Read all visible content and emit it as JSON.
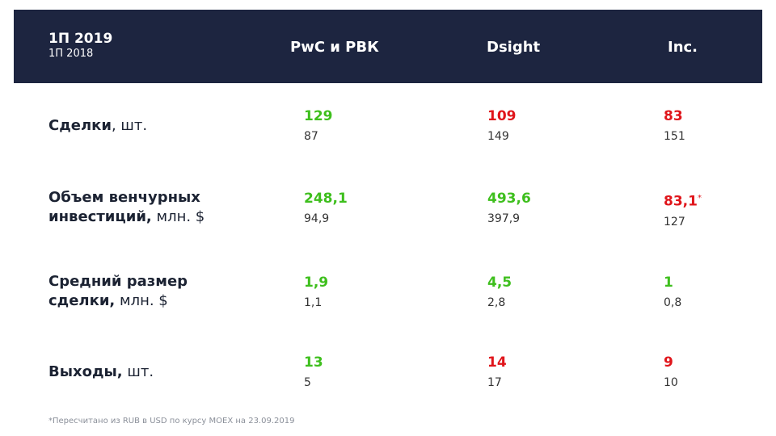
{
  "header": {
    "period_current": "1П 2019",
    "period_previous": "1П 2018",
    "columns": [
      "PwC и РВК",
      "Dsight",
      "Inc."
    ]
  },
  "rows": [
    {
      "label_bold": "Сделки",
      "label_unit": ", шт.",
      "cells": [
        {
          "value": "129",
          "previous": "87",
          "color": "#3ebf1d"
        },
        {
          "value": "109",
          "previous": "149",
          "color": "#e0151b"
        },
        {
          "value": "83",
          "previous": "151",
          "color": "#e0151b"
        }
      ]
    },
    {
      "label_line1": "Объем венчурных",
      "label_bold2": "инвестиций,",
      "label_unit": " млн. $",
      "cells": [
        {
          "value": "248,1",
          "previous": "94,9",
          "color": "#3ebf1d"
        },
        {
          "value": "493,6",
          "previous": "397,9",
          "color": "#3ebf1d"
        },
        {
          "value": "83,1",
          "mark": "*",
          "previous": "127",
          "color": "#e0151b"
        }
      ]
    },
    {
      "label_line1": "Средний размер",
      "label_bold2": "сделки,",
      "label_unit": " млн. $",
      "cells": [
        {
          "value": "1,9",
          "previous": "1,1",
          "color": "#3ebf1d"
        },
        {
          "value": "4,5",
          "previous": "2,8",
          "color": "#3ebf1d"
        },
        {
          "value": "1",
          "previous": "0,8",
          "color": "#3ebf1d"
        }
      ]
    },
    {
      "label_bold": "Выходы,",
      "label_unit": " шт.",
      "cells": [
        {
          "value": "13",
          "previous": "5",
          "color": "#3ebf1d"
        },
        {
          "value": "14",
          "previous": "17",
          "color": "#e0151b"
        },
        {
          "value": "9",
          "previous": "10",
          "color": "#e0151b"
        }
      ]
    }
  ],
  "footnote": "*Пересчитано из RUB в USD по курсу MOEX на 23.09.2019"
}
